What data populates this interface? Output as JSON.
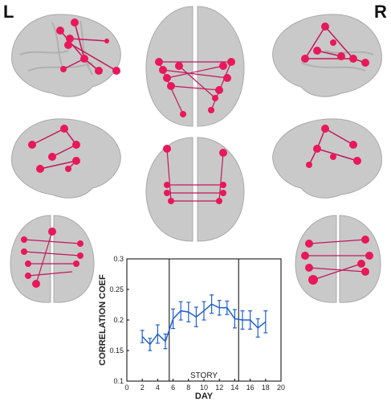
{
  "labels": {
    "left": "L",
    "right": "R"
  },
  "colors": {
    "brain": "#c8c8c8",
    "node": "#e8185a",
    "edge": "#c2185b",
    "line": "#1f5fcf"
  },
  "views": [
    {
      "id": "left-lateral-top",
      "icon": "brain-lateral-left"
    },
    {
      "id": "dorsal-top",
      "icon": "brain-dorsal"
    },
    {
      "id": "right-lateral-top",
      "icon": "brain-lateral-right"
    },
    {
      "id": "left-lateral-middle",
      "icon": "brain-lateral-left"
    },
    {
      "id": "dorsal-middle",
      "icon": "brain-dorsal"
    },
    {
      "id": "right-lateral-middle",
      "icon": "brain-lateral-right"
    },
    {
      "id": "anterior-bottom-left",
      "icon": "brain-anterior"
    },
    {
      "id": "anterior-bottom-right",
      "icon": "brain-anterior"
    }
  ],
  "chart_data": {
    "type": "line",
    "xlabel": "DAY",
    "ylabel": "CORRELATION COEF",
    "xlim": [
      0,
      20
    ],
    "ylim": [
      0.1,
      0.3
    ],
    "xticks": [
      "0",
      "2",
      "4",
      "6",
      "8",
      "10",
      "12",
      "14",
      "16",
      "18",
      "20"
    ],
    "yticks": [
      "0.1",
      "0.15",
      "0.2",
      "0.25",
      "0.3"
    ],
    "annotation": "STORY",
    "story_period": [
      5.5,
      14.5
    ],
    "series": [
      {
        "x": [
          2,
          3,
          4,
          5,
          6,
          7,
          8,
          9,
          10,
          11,
          12,
          13,
          14,
          15,
          16,
          17,
          18
        ],
        "y": [
          0.173,
          0.16,
          0.177,
          0.165,
          0.202,
          0.215,
          0.213,
          0.205,
          0.215,
          0.226,
          0.22,
          0.22,
          0.202,
          0.2,
          0.2,
          0.187,
          0.197
        ],
        "err": [
          0.01,
          0.01,
          0.015,
          0.012,
          0.016,
          0.015,
          0.016,
          0.016,
          0.015,
          0.015,
          0.012,
          0.011,
          0.015,
          0.015,
          0.015,
          0.015,
          0.018
        ]
      }
    ]
  }
}
